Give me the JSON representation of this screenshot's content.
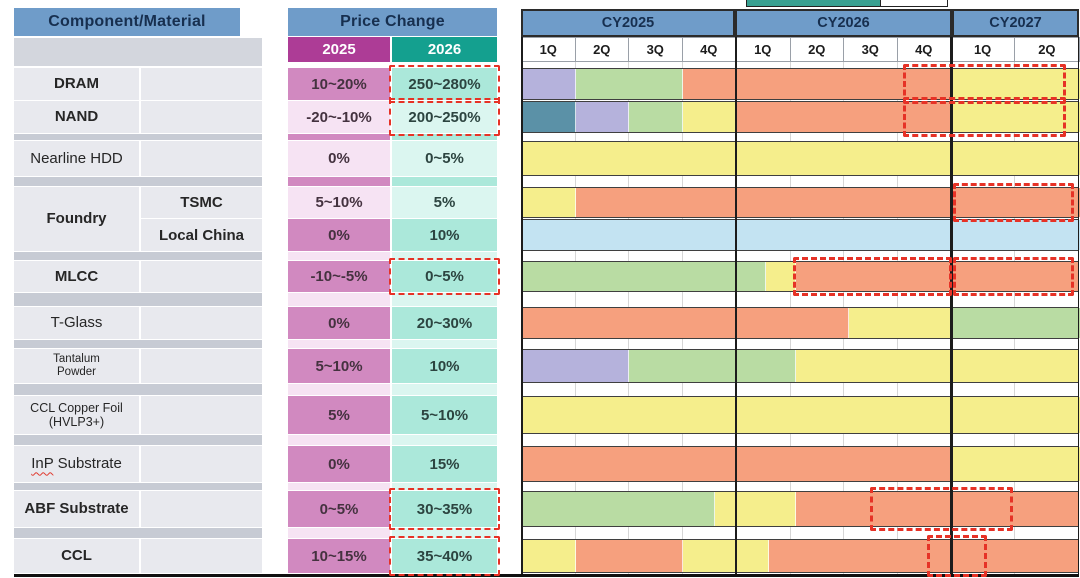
{
  "left_header": "Component/Material",
  "price_header": "Price Change",
  "chart_data": {
    "type": "table+gantt",
    "note_units": "timeline positions are in quarter units 0-10 = CY2025 1Q through CY2027 2Q",
    "price_columns": [
      "2025",
      "2026"
    ],
    "years": [
      {
        "label": "CY2025",
        "quarters": [
          "1Q",
          "2Q",
          "3Q",
          "4Q"
        ]
      },
      {
        "label": "CY2026",
        "quarters": [
          "1Q",
          "2Q",
          "3Q",
          "4Q"
        ]
      },
      {
        "label": "CY2027",
        "quarters": [
          "1Q",
          "2Q"
        ]
      }
    ],
    "rows": [
      {
        "id": "dram",
        "component": "DRAM",
        "bold": true,
        "p2025": "10~20%",
        "p2026": "250~280%",
        "boxed_2026": true,
        "shade": "dark",
        "segments": [
          [
            "lavender",
            0,
            1
          ],
          [
            "green",
            1,
            3
          ],
          [
            "salmon",
            3,
            8
          ],
          [
            "yellow",
            8,
            10
          ]
        ],
        "highlight_boxes": [
          [
            7.15,
            9.78
          ]
        ]
      },
      {
        "id": "nand",
        "component": "NAND",
        "bold": true,
        "p2025": "-20~-10%",
        "p2026": "200~250%",
        "boxed_2026": true,
        "shade": "light",
        "segments": [
          [
            "teal",
            0,
            1
          ],
          [
            "lavender",
            1,
            2
          ],
          [
            "green",
            2,
            3
          ],
          [
            "yellow",
            3,
            4
          ],
          [
            "salmon",
            4,
            8
          ],
          [
            "yellow",
            8,
            10
          ]
        ],
        "highlight_boxes": [
          [
            7.15,
            9.78
          ]
        ]
      },
      {
        "id": "nearline-hdd",
        "component": "Nearline HDD",
        "bold": false,
        "p2025": "0%",
        "p2026": "0~5%",
        "boxed_2026": false,
        "shade": "light",
        "segments": [
          [
            "yellow",
            0,
            10
          ]
        ],
        "highlight_boxes": []
      },
      {
        "id": "foundry-tsmc",
        "component": "Foundry",
        "component_rowspan": 2,
        "bold": true,
        "sub": "TSMC",
        "p2025": "5~10%",
        "p2026": "5%",
        "boxed_2026": false,
        "shade": "light",
        "segments": [
          [
            "yellow",
            0,
            1
          ],
          [
            "salmon",
            1,
            10
          ]
        ],
        "highlight_boxes": [
          [
            8.08,
            9.9
          ]
        ]
      },
      {
        "id": "foundry-local-china",
        "sub": "Local China",
        "bold": true,
        "p2025": "0%",
        "p2026": "10%",
        "boxed_2026": false,
        "shade": "dark",
        "segments": [
          [
            "blue",
            0,
            10
          ]
        ],
        "highlight_boxes": []
      },
      {
        "id": "mlcc",
        "component": "MLCC",
        "bold": true,
        "p2025": "-10~-5%",
        "p2026": "0~5%",
        "boxed_2026": true,
        "shade": "dark",
        "segments": [
          [
            "green",
            0,
            4.55
          ],
          [
            "yellow",
            4.55,
            5.1
          ],
          [
            "salmon",
            5.1,
            10
          ]
        ],
        "highlight_boxes": [
          [
            5.1,
            8
          ],
          [
            8.08,
            9.9
          ]
        ]
      },
      {
        "id": "t-glass",
        "component": "T-Glass",
        "bold": false,
        "p2025": "0%",
        "p2026": "20~30%",
        "boxed_2026": false,
        "shade": "dark",
        "segments": [
          [
            "salmon",
            0,
            6.1
          ],
          [
            "yellow",
            6.1,
            8
          ],
          [
            "green",
            8,
            10
          ]
        ],
        "highlight_boxes": []
      },
      {
        "id": "tantalum-powder",
        "component": "Tantalum Powder",
        "bold": false,
        "p2025": "5~10%",
        "p2026": "10%",
        "boxed_2026": false,
        "shade": "dark",
        "segments": [
          [
            "lavender",
            0,
            2
          ],
          [
            "green",
            2,
            5.1
          ],
          [
            "yellow",
            5.1,
            10
          ]
        ],
        "highlight_boxes": []
      },
      {
        "id": "ccl-copper-foil",
        "component": "CCL Copper Foil (HVLP3+)",
        "bold": false,
        "p2025": "5%",
        "p2026": "5~10%",
        "boxed_2026": false,
        "shade": "dark",
        "segments": [
          [
            "yellow",
            0,
            10
          ]
        ],
        "highlight_boxes": []
      },
      {
        "id": "inp-substrate",
        "component": "InP Substrate",
        "bold": false,
        "misspell_underline": "InP",
        "p2025": "0%",
        "p2026": "15%",
        "boxed_2026": false,
        "shade": "dark",
        "segments": [
          [
            "salmon",
            0,
            8
          ],
          [
            "yellow",
            8,
            10
          ]
        ],
        "highlight_boxes": []
      },
      {
        "id": "abf-substrate",
        "component": "ABF Substrate",
        "bold": true,
        "p2025": "0~5%",
        "p2026": "30~35%",
        "boxed_2026": true,
        "shade": "dark",
        "segments": [
          [
            "green",
            0,
            3.6
          ],
          [
            "yellow",
            3.6,
            5.1
          ],
          [
            "salmon",
            5.1,
            10
          ]
        ],
        "highlight_boxes": [
          [
            6.55,
            8.95
          ]
        ]
      },
      {
        "id": "ccl",
        "component": "CCL",
        "bold": true,
        "p2025": "10~15%",
        "p2026": "35~40%",
        "boxed_2026": true,
        "shade": "dark",
        "segments": [
          [
            "yellow",
            0,
            1
          ],
          [
            "salmon",
            1,
            3
          ],
          [
            "yellow",
            3,
            4.6
          ],
          [
            "salmon",
            4.6,
            10
          ]
        ],
        "highlight_boxes": [
          [
            7.6,
            8.55
          ]
        ]
      }
    ]
  },
  "colors": {
    "header_blue": "#6f9cc9",
    "navy_text": "#17declared2f4f",
    "magenta_2025": "#ad3c96",
    "teal_2026": "#14a08f",
    "pink_dark": "#d189c0",
    "pink_light": "#f6e3f3",
    "mint_dark": "#abe8da",
    "mint_light": "#dbf6f0",
    "gray_row": "#e8e9ee",
    "gray_sep": "#c7cbd4",
    "gray_band": "#d3d6dd",
    "salmon": "#f6a07e",
    "yellow": "#f5ee8c",
    "green": "#b9dca3",
    "lavender": "#b5b2dc",
    "teal": "#5b91a7",
    "blue": "#c3e3f2",
    "red_dash": "#e63226",
    "legend_teal": "#38a091"
  }
}
